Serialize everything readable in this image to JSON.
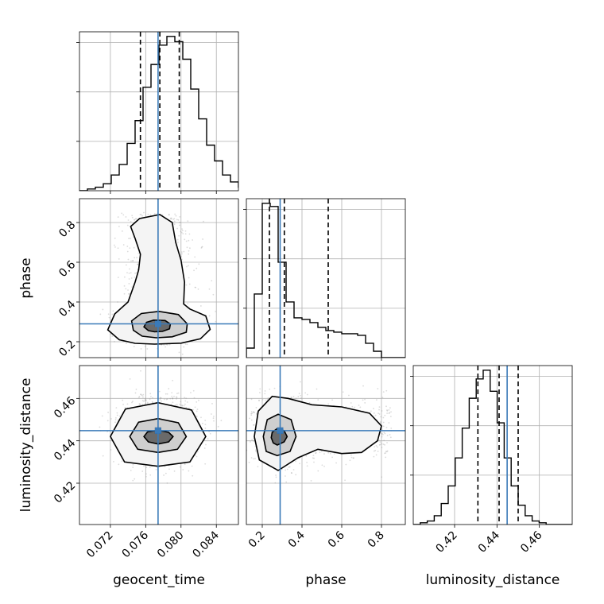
{
  "chart_data": {
    "type": "corner",
    "parameters": [
      {
        "key": "geocent_time",
        "label": "geocent_time",
        "range": [
          0.0685,
          0.0865
        ],
        "ticks": [
          0.072,
          0.076,
          0.08,
          0.084
        ],
        "tick_labels": [
          "0.072",
          "0.076",
          "0.080",
          "0.084"
        ],
        "truth": 0.0774,
        "quantiles": [
          0.0754,
          0.0776,
          0.0798
        ],
        "hist_edges_start": 0.0685,
        "hist_bin_width": 0.0009,
        "hist_counts": [
          0,
          1,
          2,
          4,
          9,
          15,
          27,
          40,
          59,
          72,
          83,
          88,
          85,
          75,
          58,
          41,
          26,
          17,
          9,
          5,
          2,
          1
        ]
      },
      {
        "key": "phase",
        "label": "phase",
        "range": [
          0.12,
          0.92
        ],
        "ticks": [
          0.2,
          0.4,
          0.6,
          0.8
        ],
        "tick_labels": [
          "0.2",
          "0.4",
          "0.6",
          "0.8"
        ],
        "truth": 0.29,
        "quantiles": [
          0.236,
          0.311,
          0.532
        ],
        "hist_edges_start": 0.12,
        "hist_bin_width": 0.04,
        "hist_counts": [
          6,
          40,
          97,
          95,
          60,
          35,
          25,
          24,
          22,
          19,
          17,
          16,
          15,
          15,
          14,
          9,
          4,
          0,
          0,
          0
        ]
      },
      {
        "key": "luminosity_distance",
        "label": "luminosity_distance",
        "range": [
          0.4005,
          0.4755
        ],
        "ticks": [
          0.42,
          0.44,
          0.46
        ],
        "tick_labels": [
          "0.42",
          "0.44",
          "0.46"
        ],
        "truth": 0.4448,
        "quantiles": [
          0.431,
          0.441,
          0.45
        ],
        "hist_edges_start": 0.4005,
        "hist_bin_width": 0.0033,
        "hist_counts": [
          0,
          1,
          2,
          5,
          12,
          22,
          38,
          55,
          72,
          83,
          88,
          76,
          58,
          38,
          22,
          11,
          5,
          2,
          1,
          0,
          0,
          0,
          0
        ]
      }
    ],
    "scatter_panels": [
      {
        "x": "geocent_time",
        "y": "phase",
        "x_spread": 0.0021,
        "y_spread": 0.05,
        "contour_levels": [
          [
            [
              0.077,
              0.25
            ],
            [
              0.0779,
              0.252
            ],
            [
              0.0787,
              0.265
            ],
            [
              0.0788,
              0.289
            ],
            [
              0.0782,
              0.307
            ],
            [
              0.0769,
              0.309
            ],
            [
              0.0761,
              0.298
            ],
            [
              0.0758,
              0.275
            ],
            [
              0.0763,
              0.256
            ]
          ],
          [
            [
              0.0772,
              0.22
            ],
            [
              0.079,
              0.225
            ],
            [
              0.0806,
              0.248
            ],
            [
              0.0807,
              0.29
            ],
            [
              0.0797,
              0.337
            ],
            [
              0.0775,
              0.353
            ],
            [
              0.0755,
              0.342
            ],
            [
              0.0744,
              0.305
            ],
            [
              0.0746,
              0.258
            ],
            [
              0.0756,
              0.228
            ]
          ],
          [
            [
              0.077,
              0.188
            ],
            [
              0.08,
              0.193
            ],
            [
              0.0822,
              0.215
            ],
            [
              0.0833,
              0.262
            ],
            [
              0.0828,
              0.33
            ],
            [
              0.081,
              0.365
            ],
            [
              0.0803,
              0.39
            ],
            [
              0.0804,
              0.5
            ],
            [
              0.08,
              0.61
            ],
            [
              0.0794,
              0.7
            ],
            [
              0.079,
              0.8
            ],
            [
              0.0776,
              0.84
            ],
            [
              0.0753,
              0.82
            ],
            [
              0.0743,
              0.78
            ],
            [
              0.0748,
              0.72
            ],
            [
              0.0754,
              0.64
            ],
            [
              0.0752,
              0.56
            ],
            [
              0.0748,
              0.5
            ],
            [
              0.074,
              0.4
            ],
            [
              0.0725,
              0.34
            ],
            [
              0.0717,
              0.26
            ],
            [
              0.073,
              0.21
            ],
            [
              0.0748,
              0.192
            ]
          ]
        ]
      },
      {
        "x": "geocent_time",
        "y": "luminosity_distance",
        "x_spread": 0.0022,
        "y_spread": 0.0075,
        "contour_levels": [
          [
            [
              0.0774,
              0.4385
            ],
            [
              0.0786,
              0.4395
            ],
            [
              0.0791,
              0.442
            ],
            [
              0.0786,
              0.444
            ],
            [
              0.0774,
              0.445
            ],
            [
              0.0762,
              0.4442
            ],
            [
              0.0758,
              0.442
            ],
            [
              0.0763,
              0.4395
            ]
          ],
          [
            [
              0.0774,
              0.4345
            ],
            [
              0.0796,
              0.436
            ],
            [
              0.0806,
              0.442
            ],
            [
              0.0797,
              0.4485
            ],
            [
              0.0774,
              0.4505
            ],
            [
              0.0752,
              0.4488
            ],
            [
              0.0742,
              0.442
            ],
            [
              0.0751,
              0.436
            ]
          ],
          [
            [
              0.0774,
              0.428
            ],
            [
              0.081,
              0.43
            ],
            [
              0.0828,
              0.442
            ],
            [
              0.0812,
              0.4545
            ],
            [
              0.0774,
              0.458
            ],
            [
              0.0737,
              0.455
            ],
            [
              0.072,
              0.442
            ],
            [
              0.0736,
              0.43
            ]
          ]
        ]
      },
      {
        "x": "phase",
        "y": "luminosity_distance",
        "x_spread": 0.12,
        "y_spread": 0.0075,
        "contour_levels": [
          [
            [
              0.275,
              0.438
            ],
            [
              0.31,
              0.4395
            ],
            [
              0.325,
              0.442
            ],
            [
              0.31,
              0.4448
            ],
            [
              0.275,
              0.4458
            ],
            [
              0.25,
              0.444
            ],
            [
              0.245,
              0.4415
            ],
            [
              0.255,
              0.439
            ]
          ],
          [
            [
              0.275,
              0.433
            ],
            [
              0.34,
              0.435
            ],
            [
              0.37,
              0.442
            ],
            [
              0.345,
              0.45
            ],
            [
              0.28,
              0.4525
            ],
            [
              0.225,
              0.45
            ],
            [
              0.205,
              0.442
            ],
            [
              0.22,
              0.435
            ]
          ],
          [
            [
              0.28,
              0.426
            ],
            [
              0.38,
              0.432
            ],
            [
              0.48,
              0.436
            ],
            [
              0.6,
              0.434
            ],
            [
              0.7,
              0.4345
            ],
            [
              0.78,
              0.44
            ],
            [
              0.8,
              0.447
            ],
            [
              0.74,
              0.453
            ],
            [
              0.6,
              0.456
            ],
            [
              0.45,
              0.457
            ],
            [
              0.33,
              0.46
            ],
            [
              0.25,
              0.461
            ],
            [
              0.18,
              0.454
            ],
            [
              0.16,
              0.442
            ],
            [
              0.185,
              0.431
            ]
          ]
        ]
      }
    ],
    "truth_color": "#3a7ab8",
    "grid": true
  }
}
